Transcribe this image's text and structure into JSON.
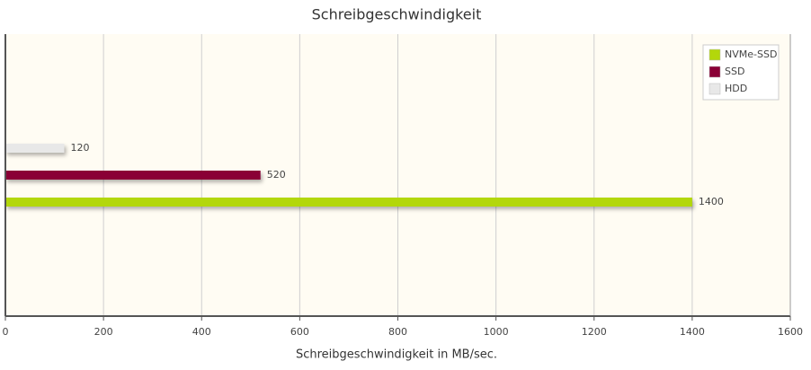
{
  "chart_data": {
    "type": "bar",
    "orientation": "horizontal",
    "title": "Schreibgeschwindigkeit",
    "x_label": "Schreibgeschwindigkeit in MB/sec.",
    "categories": [
      null
    ],
    "series": [
      {
        "name": "NVMe-SSD",
        "color": "#b3d70b",
        "values": [
          1400
        ]
      },
      {
        "name": "SSD",
        "color": "#8a0036",
        "values": [
          520
        ]
      },
      {
        "name": "HDD",
        "color": "#e8e8e8",
        "values": [
          120
        ]
      }
    ],
    "xlim": [
      0,
      1600
    ],
    "xticks": [
      0,
      200,
      400,
      600,
      800,
      1000,
      1200,
      1400,
      1600
    ],
    "grid": true,
    "legend": "top-right"
  }
}
